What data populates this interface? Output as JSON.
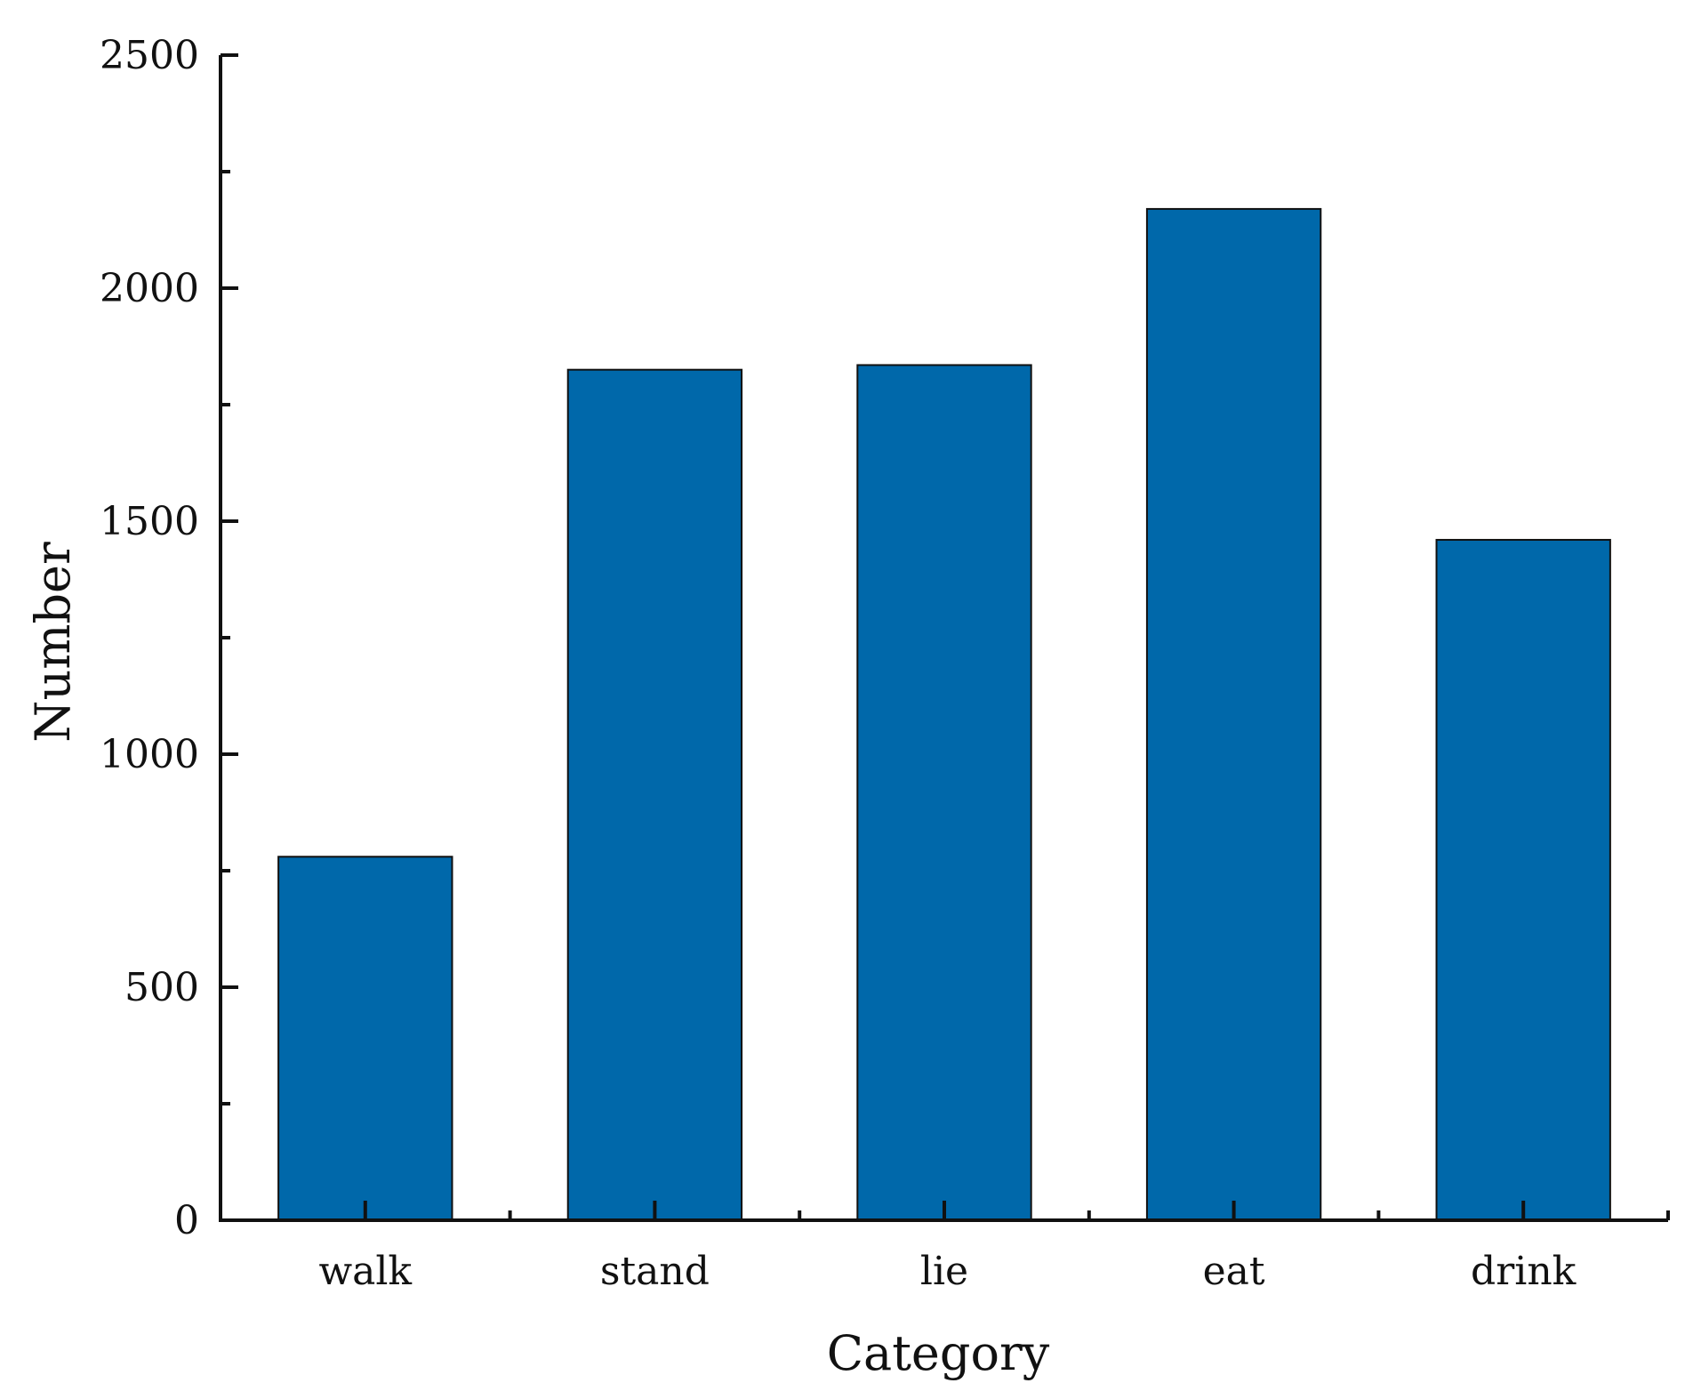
{
  "chart_data": {
    "type": "bar",
    "title": "",
    "xlabel": "Category",
    "ylabel": "Number",
    "categories": [
      "walk",
      "stand",
      "lie",
      "eat",
      "drink"
    ],
    "values": [
      780,
      1825,
      1835,
      2170,
      1460
    ],
    "ylim": [
      0,
      2500
    ],
    "yticks": [
      "0",
      "500",
      "1000",
      "1500",
      "2000",
      "2500"
    ],
    "bar_color": "#0068AA",
    "grid": false,
    "legend": "none"
  }
}
